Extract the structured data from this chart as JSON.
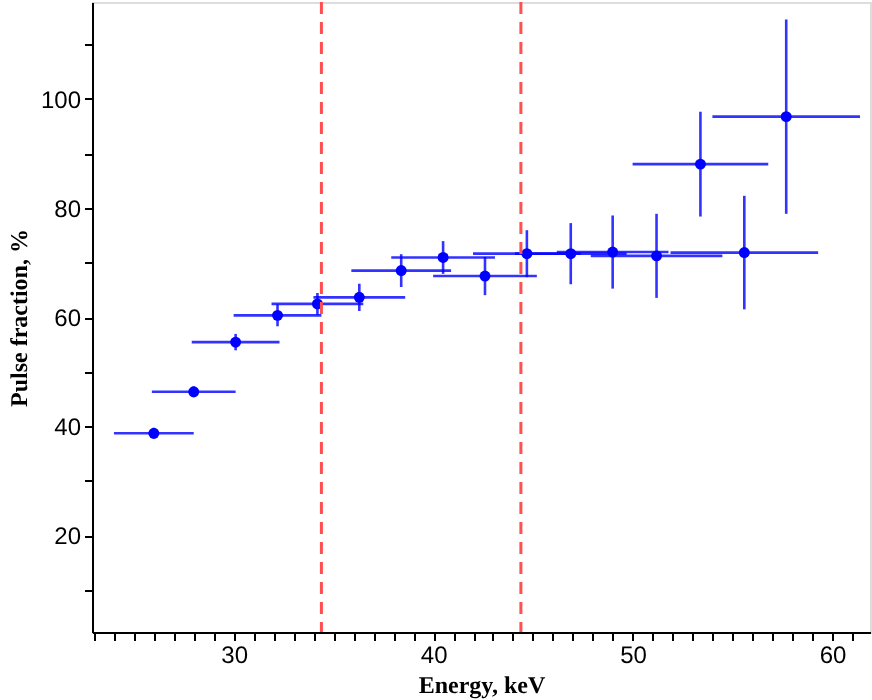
{
  "chart_data": {
    "type": "scatter",
    "xlabel": "Energy, keV",
    "ylabel": "Pulse fraction, %",
    "marker": "circle",
    "color": "#0000ff",
    "x": [
      26.0,
      28.0,
      30.1,
      32.2,
      34.2,
      36.3,
      38.4,
      40.5,
      42.6,
      44.7,
      46.9,
      49.0,
      51.2,
      55.6,
      53.4,
      57.7
    ],
    "values": [
      38.7,
      46.3,
      55.4,
      60.3,
      62.4,
      63.6,
      68.5,
      70.9,
      67.5,
      71.6,
      71.6,
      71.9,
      71.2,
      71.8,
      88.0,
      96.7
    ],
    "errors": [
      1,
      1,
      1.5,
      2,
      2,
      2.5,
      3,
      3,
      3.5,
      4.3,
      5.6,
      6.7,
      7.7,
      10.4,
      9.6,
      17.8
    ],
    "xerrors": [
      2,
      2.1,
      2.2,
      2.2,
      2.3,
      2.3,
      2.5,
      2.6,
      2.6,
      2.7,
      2.8,
      2.8,
      3.3,
      3.7,
      3.4,
      3.7
    ],
    "xlim": [
      22.9,
      61.9
    ],
    "ylim": [
      2.3,
      117.7
    ],
    "xticks": [
      {
        "value": 23,
        "label": null
      },
      {
        "value": 24,
        "label": null
      },
      {
        "value": 25,
        "label": null
      },
      {
        "value": 26,
        "label": null
      },
      {
        "value": 27,
        "label": null
      },
      {
        "value": 28,
        "label": null
      },
      {
        "value": 29,
        "label": null
      },
      30,
      {
        "value": 31,
        "label": null
      },
      {
        "value": 32,
        "label": null
      },
      {
        "value": 33,
        "label": null
      },
      {
        "value": 34,
        "label": null
      },
      {
        "value": 35,
        "label": null
      },
      {
        "value": 36,
        "label": null
      },
      {
        "value": 37,
        "label": null
      },
      {
        "value": 38,
        "label": null
      },
      {
        "value": 39,
        "label": null
      },
      40,
      {
        "value": 41,
        "label": null
      },
      {
        "value": 42,
        "label": null
      },
      {
        "value": 43,
        "label": null
      },
      {
        "value": 44,
        "label": null
      },
      {
        "value": 45,
        "label": null
      },
      {
        "value": 46,
        "label": null
      },
      {
        "value": 47,
        "label": null
      },
      {
        "value": 48,
        "label": null
      },
      {
        "value": 49,
        "label": null
      },
      50,
      {
        "value": 51,
        "label": null
      },
      {
        "value": 52,
        "label": null
      },
      {
        "value": 53,
        "label": null
      },
      {
        "value": 54,
        "label": null
      },
      {
        "value": 55,
        "label": null
      },
      {
        "value": 56,
        "label": null
      },
      {
        "value": 57,
        "label": null
      },
      {
        "value": 58,
        "label": null
      },
      {
        "value": 59,
        "label": null
      },
      60,
      {
        "value": 61,
        "label": null
      }
    ],
    "yticks": [
      {
        "value": 10,
        "label": null
      },
      20,
      {
        "value": 30,
        "label": null
      },
      40,
      {
        "value": 50,
        "label": null
      },
      60,
      {
        "value": 70,
        "label": null
      },
      80,
      {
        "value": 90,
        "label": null
      },
      100,
      {
        "value": 110,
        "label": null
      }
    ],
    "ref_lines": [
      {
        "axis": "x",
        "value": 34.4,
        "color": "#ff5050",
        "line_style": "dashed"
      },
      {
        "axis": "x",
        "value": 44.4,
        "color": "#ff5050",
        "line_style": "dashed"
      }
    ]
  }
}
